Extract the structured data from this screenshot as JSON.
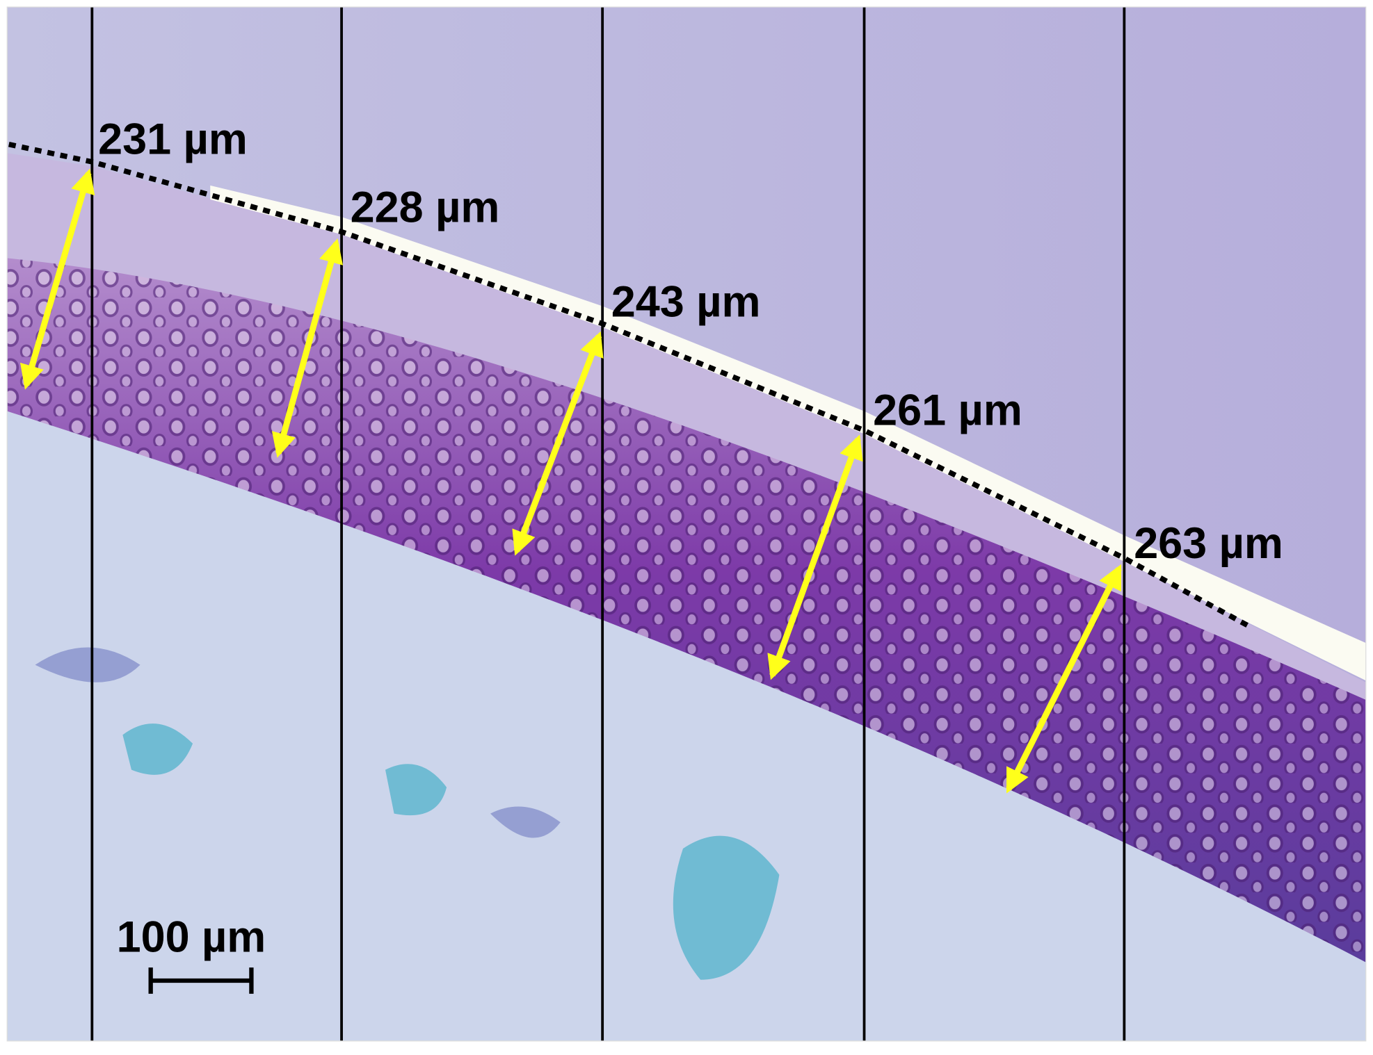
{
  "annotations": [
    {
      "label": "231 µm"
    },
    {
      "label": "228 µm"
    },
    {
      "label": "243 µm"
    },
    {
      "label": "261 µm"
    },
    {
      "label": "263 µm"
    }
  ],
  "scale_bar": {
    "label": "100 µm"
  }
}
